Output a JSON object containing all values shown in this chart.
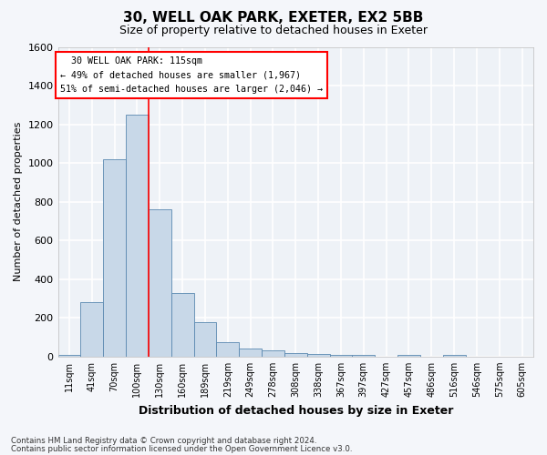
{
  "title1": "30, WELL OAK PARK, EXETER, EX2 5BB",
  "title2": "Size of property relative to detached houses in Exeter",
  "xlabel": "Distribution of detached houses by size in Exeter",
  "ylabel": "Number of detached properties",
  "bar_labels": [
    "11sqm",
    "41sqm",
    "70sqm",
    "100sqm",
    "130sqm",
    "160sqm",
    "189sqm",
    "219sqm",
    "249sqm",
    "278sqm",
    "308sqm",
    "338sqm",
    "367sqm",
    "397sqm",
    "427sqm",
    "457sqm",
    "486sqm",
    "516sqm",
    "546sqm",
    "575sqm",
    "605sqm"
  ],
  "bar_values": [
    10,
    280,
    1020,
    1250,
    760,
    330,
    180,
    75,
    40,
    30,
    20,
    15,
    10,
    10,
    0,
    10,
    0,
    10,
    0,
    0,
    0
  ],
  "bar_color": "#c8d8e8",
  "bar_edge_color": "#5a88b0",
  "ylim": [
    0,
    1600
  ],
  "yticks": [
    0,
    200,
    400,
    600,
    800,
    1000,
    1200,
    1400,
    1600
  ],
  "property_label": "30 WELL OAK PARK: 115sqm",
  "pct_smaller": "49% of detached houses are smaller (1,967)",
  "pct_larger": "51% of semi-detached houses are larger (2,046)",
  "footer_line1": "Contains HM Land Registry data © Crown copyright and database right 2024.",
  "footer_line2": "Contains public sector information licensed under the Open Government Licence v3.0.",
  "bg_color": "#eef2f7",
  "grid_color": "#ffffff",
  "title1_fontsize": 11,
  "title2_fontsize": 9
}
